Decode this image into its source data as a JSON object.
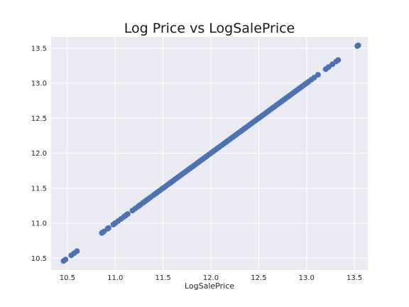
{
  "chart_data": {
    "type": "scatter",
    "title": "Log Price vs LogSalePrice",
    "xlabel": "LogSalePrice",
    "ylabel": "",
    "xlim": [
      10.33,
      13.64
    ],
    "ylim": [
      10.33,
      13.66
    ],
    "xticks": [
      10.5,
      11.0,
      11.5,
      12.0,
      12.5,
      13.0,
      13.5
    ],
    "yticks": [
      10.5,
      11.0,
      11.5,
      12.0,
      12.5,
      13.0,
      13.5
    ],
    "xtick_labels": [
      "10.5",
      "11.0",
      "11.5",
      "12.0",
      "12.5",
      "13.0",
      "13.5"
    ],
    "ytick_labels": [
      "10.5",
      "11.0",
      "11.5",
      "12.0",
      "12.5",
      "13.0",
      "13.5"
    ],
    "grid": true,
    "colors": {
      "background": "#eaeaf2",
      "grid": "#ffffff",
      "marker": "#4c72b0"
    },
    "series": [
      {
        "x": [
          10.46,
          10.48,
          10.54,
          10.57,
          10.6,
          10.86,
          10.88,
          10.92,
          10.93,
          10.98,
          11.0,
          11.03,
          11.06,
          11.09,
          11.11,
          11.13,
          11.18,
          11.21,
          11.24,
          11.26,
          11.29,
          11.31,
          11.33,
          11.35,
          11.37,
          11.4,
          11.42,
          11.44,
          11.46,
          11.48,
          11.5,
          11.52,
          11.54,
          11.56,
          11.58,
          11.6,
          11.62,
          11.64,
          11.66,
          11.68,
          11.7,
          11.72,
          11.74,
          11.76,
          11.78,
          11.8,
          11.82,
          11.84,
          11.86,
          11.88,
          11.9,
          11.92,
          11.94,
          11.96,
          11.98,
          12.0,
          12.02,
          12.04,
          12.06,
          12.08,
          12.1,
          12.12,
          12.14,
          12.16,
          12.18,
          12.2,
          12.22,
          12.24,
          12.26,
          12.28,
          12.3,
          12.32,
          12.34,
          12.36,
          12.38,
          12.4,
          12.42,
          12.44,
          12.46,
          12.48,
          12.5,
          12.52,
          12.54,
          12.56,
          12.58,
          12.6,
          12.62,
          12.64,
          12.66,
          12.68,
          12.7,
          12.72,
          12.74,
          12.76,
          12.78,
          12.8,
          12.82,
          12.84,
          12.86,
          12.88,
          12.9,
          12.92,
          12.94,
          12.96,
          12.98,
          13.0,
          13.02,
          13.05,
          13.08,
          13.12,
          13.2,
          13.23,
          13.27,
          13.31,
          13.33,
          13.53,
          13.54
        ],
        "y": [
          10.46,
          10.48,
          10.54,
          10.57,
          10.6,
          10.86,
          10.88,
          10.92,
          10.93,
          10.98,
          11.0,
          11.03,
          11.06,
          11.09,
          11.11,
          11.13,
          11.18,
          11.21,
          11.24,
          11.26,
          11.29,
          11.31,
          11.33,
          11.35,
          11.37,
          11.4,
          11.42,
          11.44,
          11.46,
          11.48,
          11.5,
          11.52,
          11.54,
          11.56,
          11.58,
          11.6,
          11.62,
          11.64,
          11.66,
          11.68,
          11.7,
          11.72,
          11.74,
          11.76,
          11.78,
          11.8,
          11.82,
          11.84,
          11.86,
          11.88,
          11.9,
          11.92,
          11.94,
          11.96,
          11.98,
          12.0,
          12.02,
          12.04,
          12.06,
          12.08,
          12.1,
          12.12,
          12.14,
          12.16,
          12.18,
          12.2,
          12.22,
          12.24,
          12.26,
          12.28,
          12.3,
          12.32,
          12.34,
          12.36,
          12.38,
          12.4,
          12.42,
          12.44,
          12.46,
          12.48,
          12.5,
          12.52,
          12.54,
          12.56,
          12.58,
          12.6,
          12.62,
          12.64,
          12.66,
          12.68,
          12.7,
          12.72,
          12.74,
          12.76,
          12.78,
          12.8,
          12.82,
          12.84,
          12.86,
          12.88,
          12.9,
          12.92,
          12.94,
          12.96,
          12.98,
          13.0,
          13.02,
          13.05,
          13.08,
          13.12,
          13.2,
          13.23,
          13.27,
          13.31,
          13.33,
          13.53,
          13.54
        ]
      }
    ]
  }
}
